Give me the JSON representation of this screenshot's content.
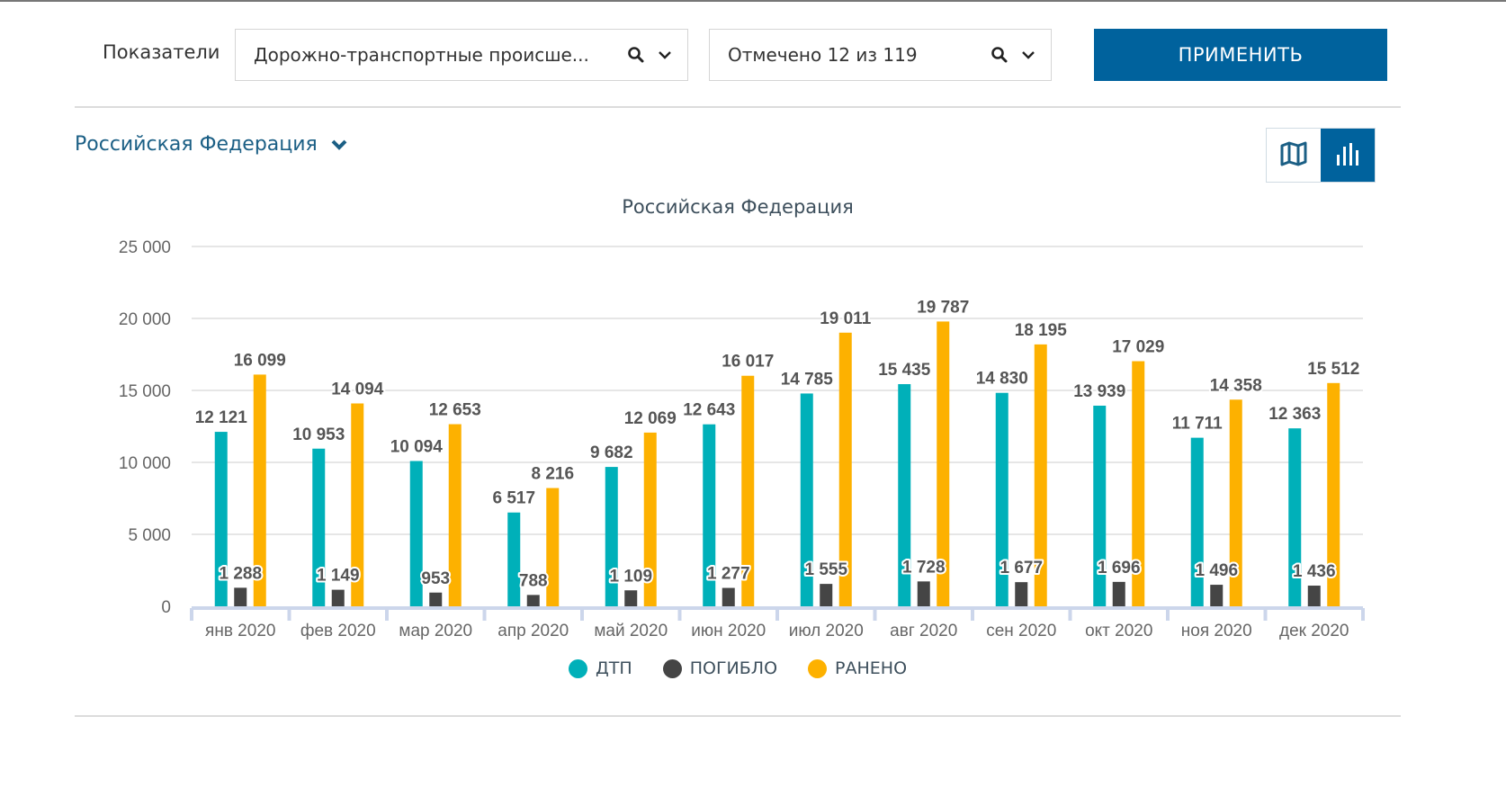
{
  "filters": {
    "label": "Показатели",
    "indicator_select": {
      "value": "Дорожно-транспортные происше...",
      "search_icon": "search-icon",
      "dropdown_icon": "chevron-down-icon"
    },
    "items_select": {
      "value": "Отмечено 12 из 119",
      "search_icon": "search-icon",
      "dropdown_icon": "chevron-down-icon"
    },
    "apply_label": "ПРИМЕНИТЬ"
  },
  "region": {
    "label": "Российская Федерация",
    "icon": "chevron-down-icon"
  },
  "view_toggle": [
    {
      "name": "map",
      "icon": "map-icon",
      "active": false
    },
    {
      "name": "chart",
      "icon": "bar-chart-icon",
      "active": true
    }
  ],
  "colors": {
    "accent": "#00629d",
    "dtp": "#00b0b9",
    "killed": "#454545",
    "injured": "#fdb100"
  },
  "chart_data": {
    "type": "bar",
    "title": "Российская Федерация",
    "xlabel": "",
    "ylabel": "",
    "ylim": [
      0,
      25000
    ],
    "yticks": [
      0,
      5000,
      10000,
      15000,
      20000,
      25000
    ],
    "ytick_labels": [
      "0",
      "5 000",
      "10 000",
      "15 000",
      "20 000",
      "25 000"
    ],
    "grid": true,
    "legend_position": "bottom",
    "categories": [
      "янв 2020",
      "фев 2020",
      "мар 2020",
      "апр 2020",
      "май 2020",
      "июн 2020",
      "июл 2020",
      "авг 2020",
      "сен 2020",
      "окт 2020",
      "ноя 2020",
      "дек 2020"
    ],
    "series": [
      {
        "name": "ДТП",
        "color": "#00b0b9",
        "values": [
          12121,
          10953,
          10094,
          6517,
          9682,
          12643,
          14785,
          15435,
          14830,
          13939,
          11711,
          12363
        ],
        "labels": [
          "12 121",
          "10 953",
          "10 094",
          "6 517",
          "9 682",
          "12 643",
          "14 785",
          "15 435",
          "14 830",
          "13 939",
          "11 711",
          "12 363"
        ]
      },
      {
        "name": "ПОГИБЛО",
        "color": "#454545",
        "values": [
          1288,
          1149,
          953,
          788,
          1109,
          1277,
          1555,
          1728,
          1677,
          1696,
          1496,
          1436
        ],
        "labels": [
          "1 288",
          "1 149",
          "953",
          "788",
          "1 109",
          "1 277",
          "1 555",
          "1 728",
          "1 677",
          "1 696",
          "1 496",
          "1 436"
        ]
      },
      {
        "name": "РАНЕНО",
        "color": "#fdb100",
        "values": [
          16099,
          14094,
          12653,
          8216,
          12069,
          16017,
          19011,
          19787,
          18195,
          17029,
          14358,
          15512
        ],
        "labels": [
          "16 099",
          "14 094",
          "12 653",
          "8 216",
          "12 069",
          "16 017",
          "19 011",
          "19 787",
          "18 195",
          "17 029",
          "14 358",
          "15 512"
        ]
      }
    ]
  }
}
